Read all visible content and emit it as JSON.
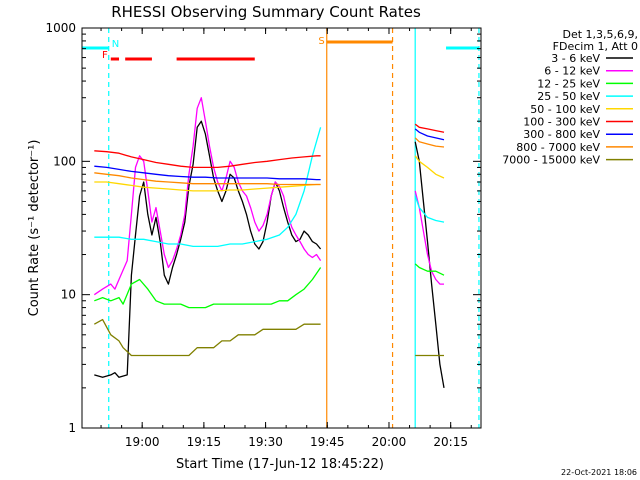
{
  "chart_data": {
    "type": "line",
    "title": "RHESSI Observing Summary Count Rates",
    "xlabel": "Start Time (17-Jun-12 18:45:22)",
    "ylabel": "Count Rate (s⁻¹ detector⁻¹)",
    "x_unit": "minutes after 18:45:22",
    "xlim": [
      0,
      97
    ],
    "ylim": [
      1,
      1000
    ],
    "yscale": "log",
    "x_ticks": [
      {
        "x": 14.63,
        "label": "19:00"
      },
      {
        "x": 29.63,
        "label": "19:15"
      },
      {
        "x": 44.63,
        "label": "19:30"
      },
      {
        "x": 59.63,
        "label": "19:45"
      },
      {
        "x": 74.63,
        "label": "20:00"
      },
      {
        "x": 89.63,
        "label": "20:15"
      }
    ],
    "y_ticks": [
      {
        "y": 1,
        "label": "1"
      },
      {
        "y": 10,
        "label": "10"
      },
      {
        "y": 100,
        "label": "100"
      },
      {
        "y": 1000,
        "label": "1000"
      }
    ],
    "legend_header": [
      "Det 1,3,5,6,9,",
      "FDecim 1, Att 0"
    ],
    "legend_position": "right",
    "series": [
      {
        "name": "3 - 6 keV",
        "color": "#000000",
        "segments": [
          {
            "x": [
              3,
              5,
              7,
              8,
              9,
              11,
              12,
              13,
              14,
              15,
              16,
              17,
              18,
              19,
              20,
              21,
              22,
              23,
              24,
              25,
              26,
              27,
              28,
              29,
              30,
              31,
              32,
              33,
              34,
              35,
              36,
              37,
              38,
              39,
              40,
              41,
              42,
              43,
              44,
              45,
              46,
              47,
              48,
              49,
              50,
              51,
              52,
              53,
              54,
              55,
              56,
              57,
              58
            ],
            "y": [
              2.5,
              2.4,
              2.5,
              2.6,
              2.4,
              2.5,
              14,
              28,
              55,
              70,
              40,
              28,
              38,
              25,
              14,
              12,
              16,
              20,
              26,
              35,
              65,
              95,
              180,
              200,
              160,
              110,
              75,
              60,
              50,
              60,
              80,
              75,
              60,
              50,
              40,
              30,
              24,
              22,
              25,
              35,
              55,
              70,
              60,
              45,
              35,
              28,
              25,
              26,
              30,
              28,
              25,
              24,
              22
            ]
          },
          {
            "x": [
              81,
              82,
              83,
              84,
              85,
              86,
              87,
              88
            ],
            "y": [
              140,
              100,
              50,
              25,
              12,
              6,
              3,
              2
            ]
          }
        ]
      },
      {
        "name": "6 - 12 keV",
        "color": "#ff00ff",
        "segments": [
          {
            "x": [
              3,
              5,
              7,
              8,
              9,
              11,
              12,
              13,
              14,
              15,
              16,
              17,
              18,
              19,
              20,
              21,
              22,
              23,
              24,
              25,
              26,
              27,
              28,
              29,
              30,
              31,
              32,
              33,
              34,
              35,
              36,
              37,
              38,
              39,
              40,
              41,
              42,
              43,
              44,
              45,
              46,
              47,
              48,
              49,
              50,
              51,
              52,
              53,
              54,
              55,
              56,
              57,
              58
            ],
            "y": [
              10,
              11,
              12,
              11,
              13,
              18,
              40,
              90,
              110,
              100,
              60,
              35,
              45,
              30,
              20,
              16,
              18,
              22,
              28,
              40,
              80,
              130,
              250,
              300,
              200,
              130,
              90,
              70,
              60,
              75,
              100,
              90,
              70,
              60,
              55,
              45,
              35,
              30,
              33,
              40,
              55,
              70,
              65,
              55,
              40,
              32,
              28,
              25,
              22,
              20,
              19,
              20,
              18
            ]
          },
          {
            "x": [
              81,
              82,
              83,
              84,
              85,
              86,
              87,
              88
            ],
            "y": [
              60,
              45,
              30,
              20,
              15,
              13,
              12,
              12
            ]
          }
        ]
      },
      {
        "name": "12 - 25 keV",
        "color": "#00ff00",
        "segments": [
          {
            "x": [
              3,
              5,
              7,
              9,
              10,
              12,
              14,
              16,
              18,
              20,
              22,
              24,
              26,
              28,
              30,
              32,
              34,
              36,
              38,
              40,
              42,
              44,
              46,
              48,
              50,
              52,
              54,
              56,
              58
            ],
            "y": [
              9,
              9.5,
              9,
              9.5,
              8.5,
              12,
              13,
              11,
              9,
              8.5,
              8.5,
              8.5,
              8,
              8,
              8,
              8.5,
              8.5,
              8.5,
              8.5,
              8.5,
              8.5,
              8.5,
              8.5,
              9,
              9,
              10,
              11,
              13,
              16
            ]
          },
          {
            "x": [
              81,
              82,
              84,
              86,
              88
            ],
            "y": [
              17,
              16,
              15,
              15,
              14
            ]
          }
        ]
      },
      {
        "name": "25 - 50 keV",
        "color": "#00ffff",
        "segments": [
          {
            "x": [
              3,
              6,
              9,
              12,
              15,
              18,
              21,
              24,
              27,
              30,
              33,
              36,
              39,
              42,
              45,
              48,
              50,
              52,
              54,
              56,
              58
            ],
            "y": [
              27,
              27,
              27,
              26,
              26,
              25,
              24,
              24,
              23,
              23,
              23,
              24,
              24,
              25,
              26,
              28,
              32,
              40,
              60,
              110,
              180
            ]
          },
          {
            "x": [
              81,
              82,
              84,
              86,
              88
            ],
            "y": [
              55,
              45,
              38,
              36,
              35
            ]
          }
        ]
      },
      {
        "name": "50 - 100 keV",
        "color": "#ffd700",
        "segments": [
          {
            "x": [
              3,
              6,
              9,
              12,
              15,
              18,
              21,
              24,
              27,
              30,
              33,
              36,
              39,
              42,
              45,
              48,
              51,
              54,
              57,
              58
            ],
            "y": [
              70,
              70,
              68,
              66,
              64,
              63,
              62,
              61,
              60,
              60,
              60,
              61,
              61,
              62,
              63,
              64,
              65,
              66,
              67,
              67
            ]
          },
          {
            "x": [
              81,
              82,
              84,
              86,
              88
            ],
            "y": [
              110,
              100,
              90,
              80,
              75
            ]
          }
        ]
      },
      {
        "name": "100 - 300 keV",
        "color": "#ff0000",
        "segments": [
          {
            "x": [
              3,
              6,
              9,
              12,
              15,
              18,
              21,
              24,
              27,
              30,
              33,
              36,
              39,
              42,
              45,
              48,
              51,
              54,
              57,
              58
            ],
            "y": [
              120,
              118,
              115,
              108,
              103,
              98,
              95,
              92,
              90,
              90,
              90,
              92,
              95,
              98,
              100,
              103,
              106,
              108,
              110,
              110
            ]
          },
          {
            "x": [
              81,
              82,
              84,
              86,
              88
            ],
            "y": [
              190,
              180,
              175,
              170,
              165
            ]
          }
        ]
      },
      {
        "name": "300 - 800 keV",
        "color": "#0000ff",
        "segments": [
          {
            "x": [
              3,
              6,
              9,
              12,
              15,
              18,
              21,
              24,
              27,
              30,
              33,
              36,
              39,
              42,
              45,
              48,
              51,
              54,
              57,
              58
            ],
            "y": [
              92,
              90,
              87,
              84,
              82,
              80,
              78,
              77,
              76,
              76,
              75,
              75,
              75,
              75,
              75,
              74,
              74,
              74,
              73,
              73
            ]
          },
          {
            "x": [
              81,
              82,
              84,
              86,
              88
            ],
            "y": [
              175,
              165,
              155,
              150,
              145
            ]
          }
        ]
      },
      {
        "name": "800 - 7000 keV",
        "color": "#ff8800",
        "segments": [
          {
            "x": [
              3,
              6,
              9,
              12,
              15,
              18,
              21,
              24,
              27,
              30,
              33,
              36,
              39,
              42,
              45,
              48,
              51,
              54,
              57,
              58
            ],
            "y": [
              82,
              80,
              78,
              75,
              73,
              71,
              70,
              69,
              68,
              68,
              68,
              68,
              68,
              68,
              68,
              67,
              67,
              67,
              67,
              67
            ]
          },
          {
            "x": [
              81,
              82,
              84,
              86,
              88
            ],
            "y": [
              150,
              140,
              135,
              130,
              128
            ]
          }
        ]
      },
      {
        "name": "7000 - 15000 keV",
        "color": "#808000",
        "segments": [
          {
            "x": [
              3,
              5,
              7,
              9,
              10,
              12,
              14,
              16,
              18,
              20,
              22,
              24,
              26,
              28,
              30,
              32,
              34,
              36,
              38,
              40,
              42,
              44,
              46,
              48,
              50,
              52,
              54,
              56,
              58
            ],
            "y": [
              6,
              6.5,
              5,
              4.5,
              4,
              3.5,
              3.5,
              3.5,
              3.5,
              3.5,
              3.5,
              3.5,
              3.5,
              4,
              4,
              4,
              4.5,
              4.5,
              5,
              5,
              5,
              5.5,
              5.5,
              5.5,
              5.5,
              5.5,
              6,
              6,
              6
            ]
          },
          {
            "x": [
              81,
              82,
              84,
              86,
              88
            ],
            "y": [
              3.5,
              3.5,
              3.5,
              3.5,
              3.5
            ]
          }
        ]
      }
    ],
    "flags": [
      {
        "label": "N",
        "color": "#00ffff",
        "segments": [
          [
            -3,
            6.5
          ],
          [
            88.5,
            96.5
          ]
        ]
      },
      {
        "label": "F",
        "color": "#ff0000",
        "segments": [
          [
            7,
            9
          ],
          [
            10.5,
            17
          ],
          [
            23,
            42
          ]
        ]
      },
      {
        "label": "S",
        "color": "#ff8800",
        "segments": [
          [
            59.5,
            75.5
          ]
        ]
      }
    ],
    "markers": [
      {
        "x": 6.5,
        "color": "#00ffff",
        "style": "dashed"
      },
      {
        "x": 59.5,
        "color": "#ff8800",
        "style": "solid"
      },
      {
        "x": 75.5,
        "color": "#ff8800",
        "style": "dashed"
      },
      {
        "x": 81,
        "color": "#00ffff",
        "style": "solid"
      },
      {
        "x": 96.5,
        "color": "#00ffff",
        "style": "dashed"
      }
    ],
    "timestamp": "22-Oct-2021 18:06"
  }
}
